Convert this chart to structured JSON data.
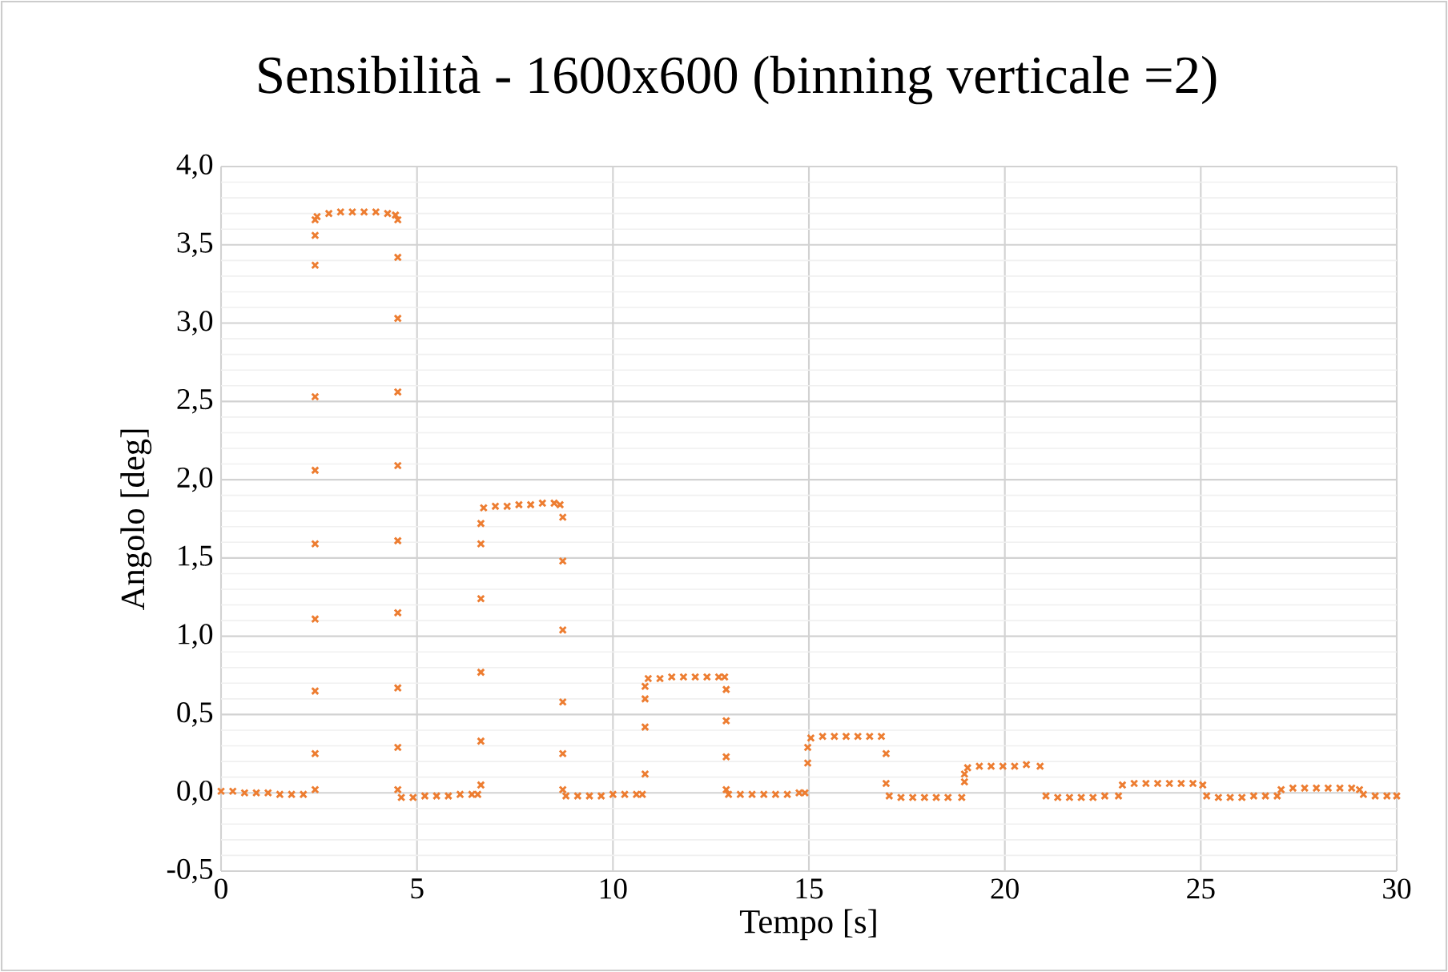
{
  "chart_data": {
    "type": "scatter",
    "title": "Sensibilità - 1600x600 (binning verticale =2)",
    "xlabel": "Tempo [s]",
    "ylabel": "Angolo [deg]",
    "xlim": [
      0,
      30
    ],
    "ylim": [
      -0.5,
      4.0
    ],
    "xticks": [
      0,
      5,
      10,
      15,
      20,
      25,
      30
    ],
    "yticks": [
      {
        "value": -0.5,
        "label": "-0,5"
      },
      {
        "value": 0,
        "label": "0,0"
      },
      {
        "value": 0.5,
        "label": "0,5"
      },
      {
        "value": 1.0,
        "label": "1,0"
      },
      {
        "value": 1.5,
        "label": "1,5"
      },
      {
        "value": 2.0,
        "label": "2,0"
      },
      {
        "value": 2.5,
        "label": "2,5"
      },
      {
        "value": 3.0,
        "label": "3,0"
      },
      {
        "value": 3.5,
        "label": "3,5"
      },
      {
        "value": 4.0,
        "label": "4,0"
      }
    ],
    "grid": true,
    "marker": "cross",
    "series": [
      {
        "color": "#ed7d31",
        "x": [
          0,
          0.3,
          0.6,
          0.9,
          1.2,
          1.5,
          1.8,
          2.1,
          2.4,
          2.4,
          2.4,
          2.4,
          2.4,
          2.4,
          2.4,
          2.4,
          2.4,
          2.4,
          2.45,
          2.75,
          3.05,
          3.35,
          3.65,
          3.95,
          4.25,
          4.45,
          4.51,
          4.51,
          4.51,
          4.51,
          4.51,
          4.51,
          4.51,
          4.51,
          4.51,
          4.51,
          4.6,
          4.9,
          5.2,
          5.5,
          5.8,
          6.1,
          6.4,
          6.55,
          6.63,
          6.63,
          6.63,
          6.63,
          6.63,
          6.63,
          6.7,
          7.0,
          7.3,
          7.6,
          7.9,
          8.2,
          8.5,
          8.65,
          8.72,
          8.72,
          8.72,
          8.72,
          8.72,
          8.72,
          8.8,
          9.1,
          9.4,
          9.7,
          10.0,
          10.3,
          10.6,
          10.75,
          10.82,
          10.82,
          10.82,
          10.82,
          10.9,
          11.2,
          11.5,
          11.8,
          12.1,
          12.4,
          12.7,
          12.85,
          12.89,
          12.89,
          12.89,
          12.89,
          12.95,
          13.25,
          13.55,
          13.85,
          14.15,
          14.45,
          14.75,
          14.9,
          14.97,
          14.97,
          15.05,
          15.35,
          15.65,
          15.95,
          16.25,
          16.55,
          16.85,
          16.97,
          16.97,
          17.05,
          17.35,
          17.65,
          17.95,
          18.25,
          18.55,
          18.9,
          18.97,
          18.97,
          19.05,
          19.35,
          19.65,
          19.95,
          20.25,
          20.55,
          20.9,
          21.05,
          21.35,
          21.65,
          21.95,
          22.25,
          22.55,
          22.9,
          23.0,
          23.3,
          23.6,
          23.9,
          24.2,
          24.5,
          24.8,
          25.05,
          25.15,
          25.45,
          25.75,
          26.05,
          26.35,
          26.65,
          26.95,
          27.05,
          27.35,
          27.65,
          27.95,
          28.25,
          28.55,
          28.85,
          29.05,
          29.15,
          29.45,
          29.75,
          30.0
        ],
        "values": [
          0.01,
          0.01,
          0.0,
          0.0,
          0.0,
          -0.01,
          -0.01,
          -0.01,
          0.02,
          0.25,
          0.65,
          1.11,
          1.59,
          2.06,
          2.53,
          3.37,
          3.56,
          3.66,
          3.68,
          3.7,
          3.71,
          3.71,
          3.71,
          3.71,
          3.7,
          3.69,
          3.66,
          3.42,
          3.03,
          2.56,
          2.09,
          1.61,
          1.15,
          0.67,
          0.29,
          0.02,
          -0.03,
          -0.03,
          -0.02,
          -0.02,
          -0.02,
          -0.01,
          -0.01,
          -0.01,
          0.05,
          0.33,
          0.77,
          1.24,
          1.59,
          1.72,
          1.82,
          1.83,
          1.83,
          1.84,
          1.84,
          1.85,
          1.85,
          1.84,
          1.76,
          1.48,
          1.04,
          0.58,
          0.25,
          0.02,
          -0.02,
          -0.02,
          -0.02,
          -0.02,
          -0.01,
          -0.01,
          -0.01,
          -0.01,
          0.12,
          0.42,
          0.6,
          0.68,
          0.73,
          0.73,
          0.74,
          0.74,
          0.74,
          0.74,
          0.74,
          0.74,
          0.66,
          0.46,
          0.23,
          0.02,
          -0.01,
          -0.01,
          -0.01,
          -0.01,
          -0.01,
          -0.01,
          0.0,
          0.0,
          0.19,
          0.29,
          0.35,
          0.36,
          0.36,
          0.36,
          0.36,
          0.36,
          0.36,
          0.25,
          0.06,
          -0.02,
          -0.03,
          -0.03,
          -0.03,
          -0.03,
          -0.03,
          -0.03,
          0.07,
          0.12,
          0.16,
          0.17,
          0.17,
          0.17,
          0.17,
          0.18,
          0.17,
          -0.02,
          -0.03,
          -0.03,
          -0.03,
          -0.03,
          -0.02,
          -0.02,
          0.05,
          0.06,
          0.06,
          0.06,
          0.06,
          0.06,
          0.06,
          0.05,
          -0.02,
          -0.03,
          -0.03,
          -0.03,
          -0.02,
          -0.02,
          -0.02,
          0.02,
          0.03,
          0.03,
          0.03,
          0.03,
          0.03,
          0.03,
          0.02,
          -0.01,
          -0.02,
          -0.02,
          -0.02
        ]
      }
    ]
  }
}
